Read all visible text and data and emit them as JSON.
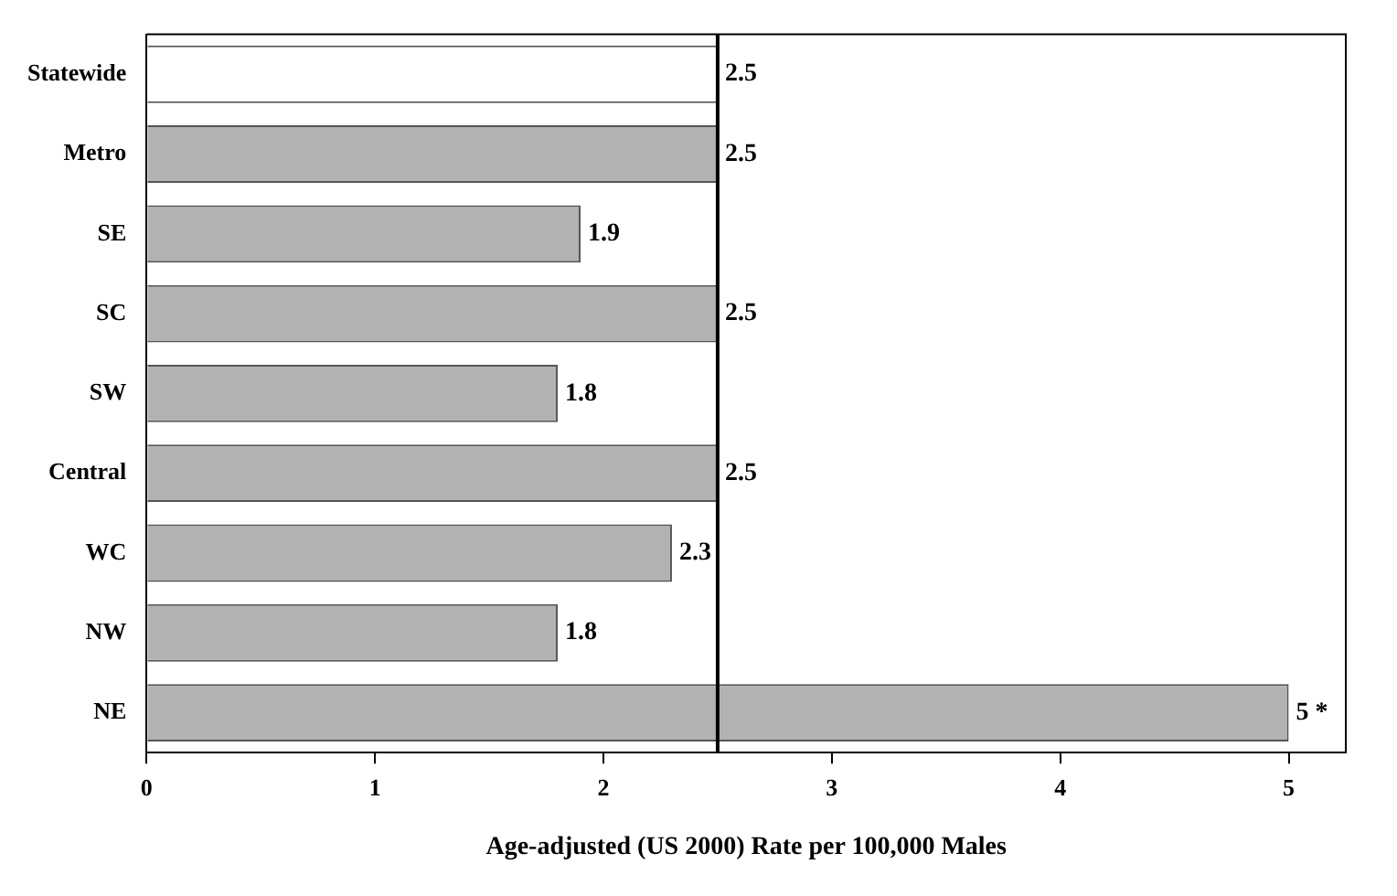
{
  "chart_data": {
    "type": "bar",
    "orientation": "horizontal",
    "xlabel": "Age-adjusted (US 2000) Rate per 100,000 Males",
    "categories": [
      "Statewide",
      "Metro",
      "SE",
      "SC",
      "SW",
      "Central",
      "WC",
      "NW",
      "NE"
    ],
    "values": [
      2.5,
      2.5,
      1.9,
      2.5,
      1.8,
      2.5,
      2.3,
      1.8,
      5
    ],
    "colors": [
      "#ffffff",
      "#b2b2b2",
      "#b2b2b2",
      "#b2b2b2",
      "#b2b2b2",
      "#b2b2b2",
      "#b2b2b2",
      "#b2b2b2",
      "#b2b2b2"
    ],
    "value_labels": [
      "2.5",
      "2.5",
      "1.9",
      "2.5",
      "1.8",
      "2.5",
      "2.3",
      "1.8",
      "5 *"
    ],
    "xlim": [
      0,
      5.25
    ],
    "xticks": [
      0,
      1,
      2,
      3,
      4,
      5
    ],
    "grid": false,
    "legend": false,
    "ref_lines": [
      {
        "axis": "x",
        "value": 2.5,
        "color": "#000000"
      }
    ]
  }
}
